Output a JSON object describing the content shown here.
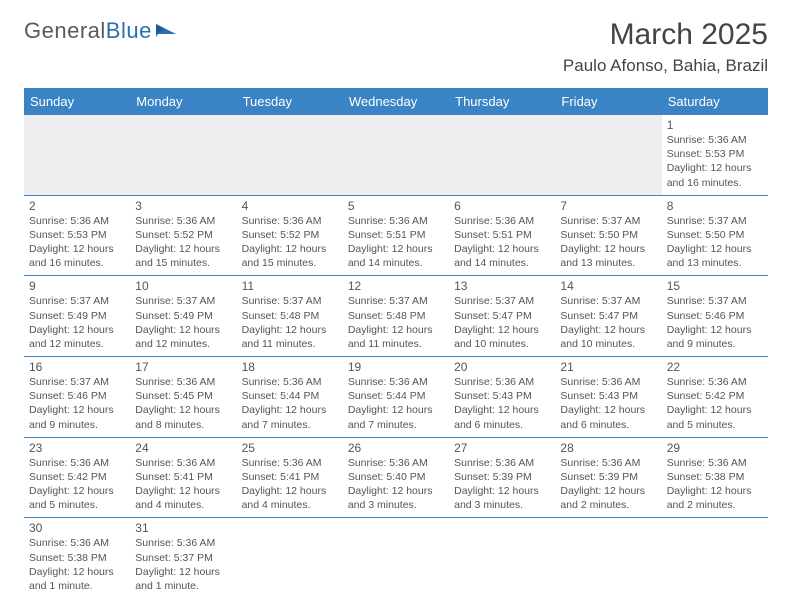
{
  "logo": {
    "text1": "General",
    "text2": "Blue"
  },
  "title": "March 2025",
  "location": "Paulo Afonso, Bahia, Brazil",
  "colors": {
    "headerBg": "#3a84c6",
    "accent": "#2b6fb3",
    "textGray": "#555"
  },
  "dayNames": [
    "Sunday",
    "Monday",
    "Tuesday",
    "Wednesday",
    "Thursday",
    "Friday",
    "Saturday"
  ],
  "weeks": [
    [
      null,
      null,
      null,
      null,
      null,
      null,
      {
        "n": "1",
        "sr": "5:36 AM",
        "ss": "5:53 PM",
        "dl": "12 hours and 16 minutes."
      }
    ],
    [
      {
        "n": "2",
        "sr": "5:36 AM",
        "ss": "5:53 PM",
        "dl": "12 hours and 16 minutes."
      },
      {
        "n": "3",
        "sr": "5:36 AM",
        "ss": "5:52 PM",
        "dl": "12 hours and 15 minutes."
      },
      {
        "n": "4",
        "sr": "5:36 AM",
        "ss": "5:52 PM",
        "dl": "12 hours and 15 minutes."
      },
      {
        "n": "5",
        "sr": "5:36 AM",
        "ss": "5:51 PM",
        "dl": "12 hours and 14 minutes."
      },
      {
        "n": "6",
        "sr": "5:36 AM",
        "ss": "5:51 PM",
        "dl": "12 hours and 14 minutes."
      },
      {
        "n": "7",
        "sr": "5:37 AM",
        "ss": "5:50 PM",
        "dl": "12 hours and 13 minutes."
      },
      {
        "n": "8",
        "sr": "5:37 AM",
        "ss": "5:50 PM",
        "dl": "12 hours and 13 minutes."
      }
    ],
    [
      {
        "n": "9",
        "sr": "5:37 AM",
        "ss": "5:49 PM",
        "dl": "12 hours and 12 minutes."
      },
      {
        "n": "10",
        "sr": "5:37 AM",
        "ss": "5:49 PM",
        "dl": "12 hours and 12 minutes."
      },
      {
        "n": "11",
        "sr": "5:37 AM",
        "ss": "5:48 PM",
        "dl": "12 hours and 11 minutes."
      },
      {
        "n": "12",
        "sr": "5:37 AM",
        "ss": "5:48 PM",
        "dl": "12 hours and 11 minutes."
      },
      {
        "n": "13",
        "sr": "5:37 AM",
        "ss": "5:47 PM",
        "dl": "12 hours and 10 minutes."
      },
      {
        "n": "14",
        "sr": "5:37 AM",
        "ss": "5:47 PM",
        "dl": "12 hours and 10 minutes."
      },
      {
        "n": "15",
        "sr": "5:37 AM",
        "ss": "5:46 PM",
        "dl": "12 hours and 9 minutes."
      }
    ],
    [
      {
        "n": "16",
        "sr": "5:37 AM",
        "ss": "5:46 PM",
        "dl": "12 hours and 9 minutes."
      },
      {
        "n": "17",
        "sr": "5:36 AM",
        "ss": "5:45 PM",
        "dl": "12 hours and 8 minutes."
      },
      {
        "n": "18",
        "sr": "5:36 AM",
        "ss": "5:44 PM",
        "dl": "12 hours and 7 minutes."
      },
      {
        "n": "19",
        "sr": "5:36 AM",
        "ss": "5:44 PM",
        "dl": "12 hours and 7 minutes."
      },
      {
        "n": "20",
        "sr": "5:36 AM",
        "ss": "5:43 PM",
        "dl": "12 hours and 6 minutes."
      },
      {
        "n": "21",
        "sr": "5:36 AM",
        "ss": "5:43 PM",
        "dl": "12 hours and 6 minutes."
      },
      {
        "n": "22",
        "sr": "5:36 AM",
        "ss": "5:42 PM",
        "dl": "12 hours and 5 minutes."
      }
    ],
    [
      {
        "n": "23",
        "sr": "5:36 AM",
        "ss": "5:42 PM",
        "dl": "12 hours and 5 minutes."
      },
      {
        "n": "24",
        "sr": "5:36 AM",
        "ss": "5:41 PM",
        "dl": "12 hours and 4 minutes."
      },
      {
        "n": "25",
        "sr": "5:36 AM",
        "ss": "5:41 PM",
        "dl": "12 hours and 4 minutes."
      },
      {
        "n": "26",
        "sr": "5:36 AM",
        "ss": "5:40 PM",
        "dl": "12 hours and 3 minutes."
      },
      {
        "n": "27",
        "sr": "5:36 AM",
        "ss": "5:39 PM",
        "dl": "12 hours and 3 minutes."
      },
      {
        "n": "28",
        "sr": "5:36 AM",
        "ss": "5:39 PM",
        "dl": "12 hours and 2 minutes."
      },
      {
        "n": "29",
        "sr": "5:36 AM",
        "ss": "5:38 PM",
        "dl": "12 hours and 2 minutes."
      }
    ],
    [
      {
        "n": "30",
        "sr": "5:36 AM",
        "ss": "5:38 PM",
        "dl": "12 hours and 1 minute."
      },
      {
        "n": "31",
        "sr": "5:36 AM",
        "ss": "5:37 PM",
        "dl": "12 hours and 1 minute."
      },
      null,
      null,
      null,
      null,
      null
    ]
  ],
  "labels": {
    "sunrise": "Sunrise: ",
    "sunset": "Sunset: ",
    "daylight": "Daylight: "
  }
}
